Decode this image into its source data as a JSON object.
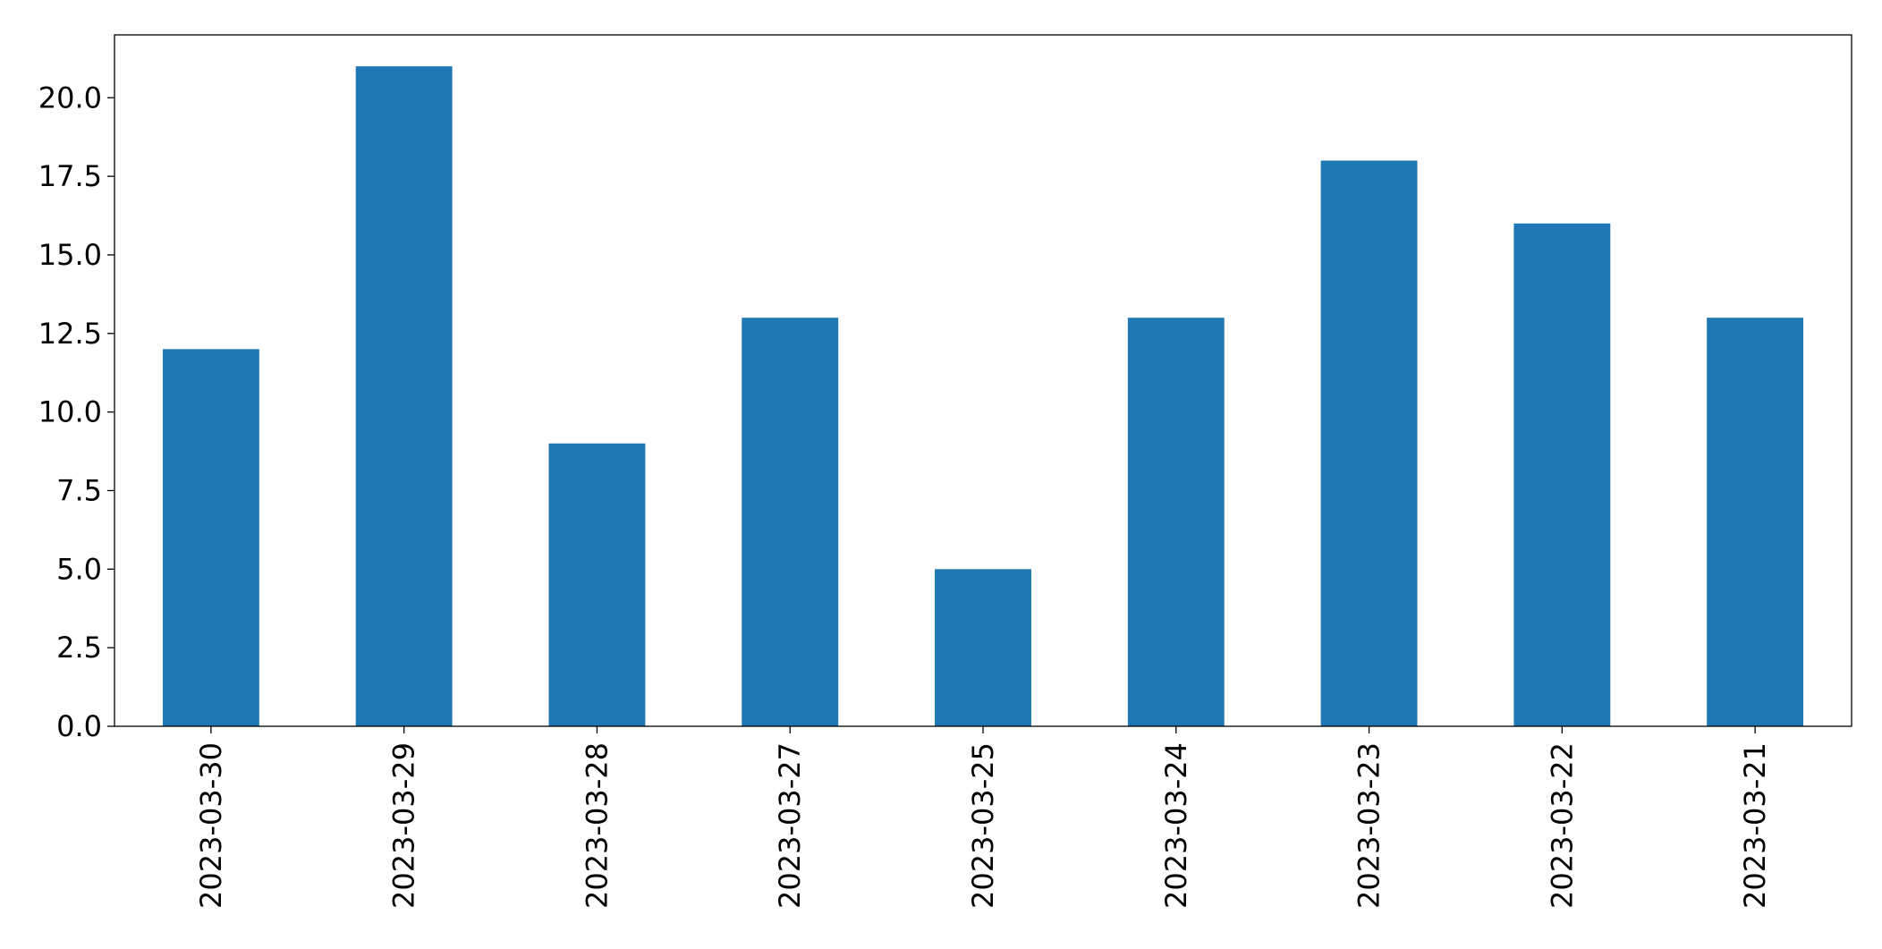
{
  "chart_data": {
    "type": "bar",
    "categories": [
      "2023-03-30",
      "2023-03-29",
      "2023-03-28",
      "2023-03-27",
      "2023-03-25",
      "2023-03-24",
      "2023-03-23",
      "2023-03-22",
      "2023-03-21"
    ],
    "values": [
      12,
      21,
      9,
      13,
      5,
      13,
      18,
      16,
      13
    ],
    "ylim": [
      0,
      22
    ],
    "yticks": [
      "0.0",
      "2.5",
      "5.0",
      "7.5",
      "10.0",
      "12.5",
      "15.0",
      "17.5",
      "20.0"
    ],
    "bar_color": "#1f77b4",
    "grid": false,
    "legend": "none"
  }
}
